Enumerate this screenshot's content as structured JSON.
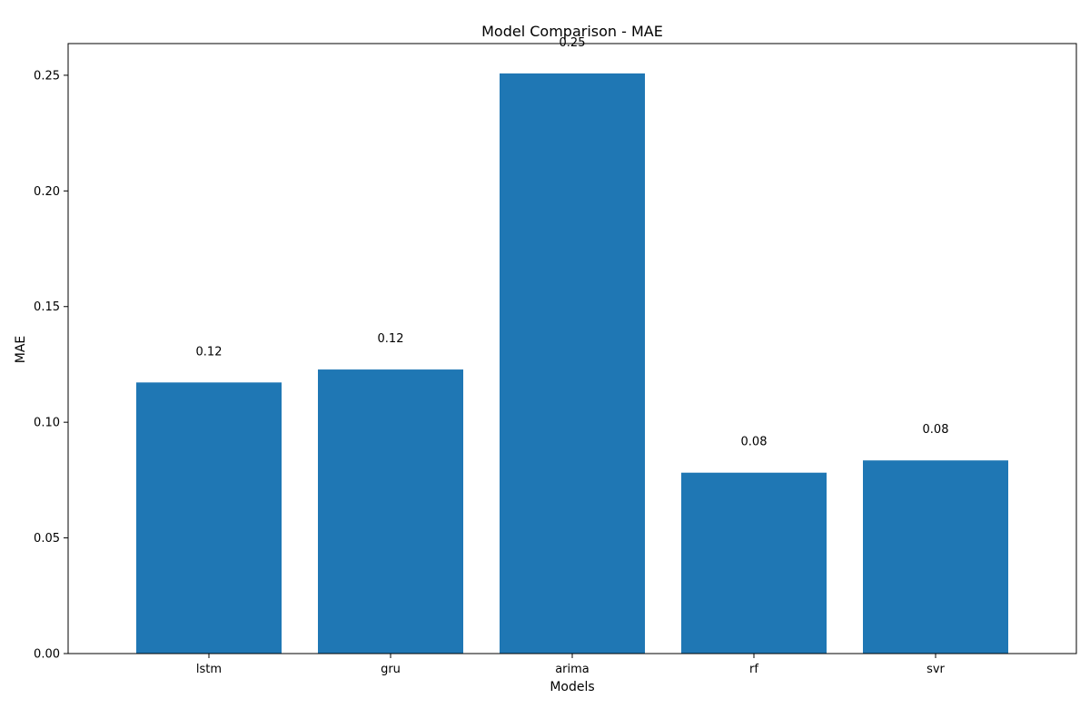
{
  "chart_data": {
    "type": "bar",
    "title": "Model Comparison - MAE",
    "xlabel": "Models",
    "ylabel": "MAE",
    "categories": [
      "lstm",
      "gru",
      "arima",
      "rf",
      "svr"
    ],
    "values": [
      0.1172,
      0.1228,
      0.2508,
      0.0782,
      0.0835
    ],
    "data_labels": [
      "0.12",
      "0.12",
      "0.25",
      "0.08",
      "0.08"
    ],
    "ylim": [
      0,
      0.2637
    ],
    "yticks": [
      0.0,
      0.05,
      0.1,
      0.15,
      0.2,
      0.25
    ],
    "ytick_labels": [
      "0.00",
      "0.05",
      "0.10",
      "0.15",
      "0.20",
      "0.25"
    ],
    "grid": false,
    "legend": "none",
    "colors": {
      "bar": "#1f77b4",
      "axis": "#000000",
      "background": "#ffffff"
    }
  }
}
